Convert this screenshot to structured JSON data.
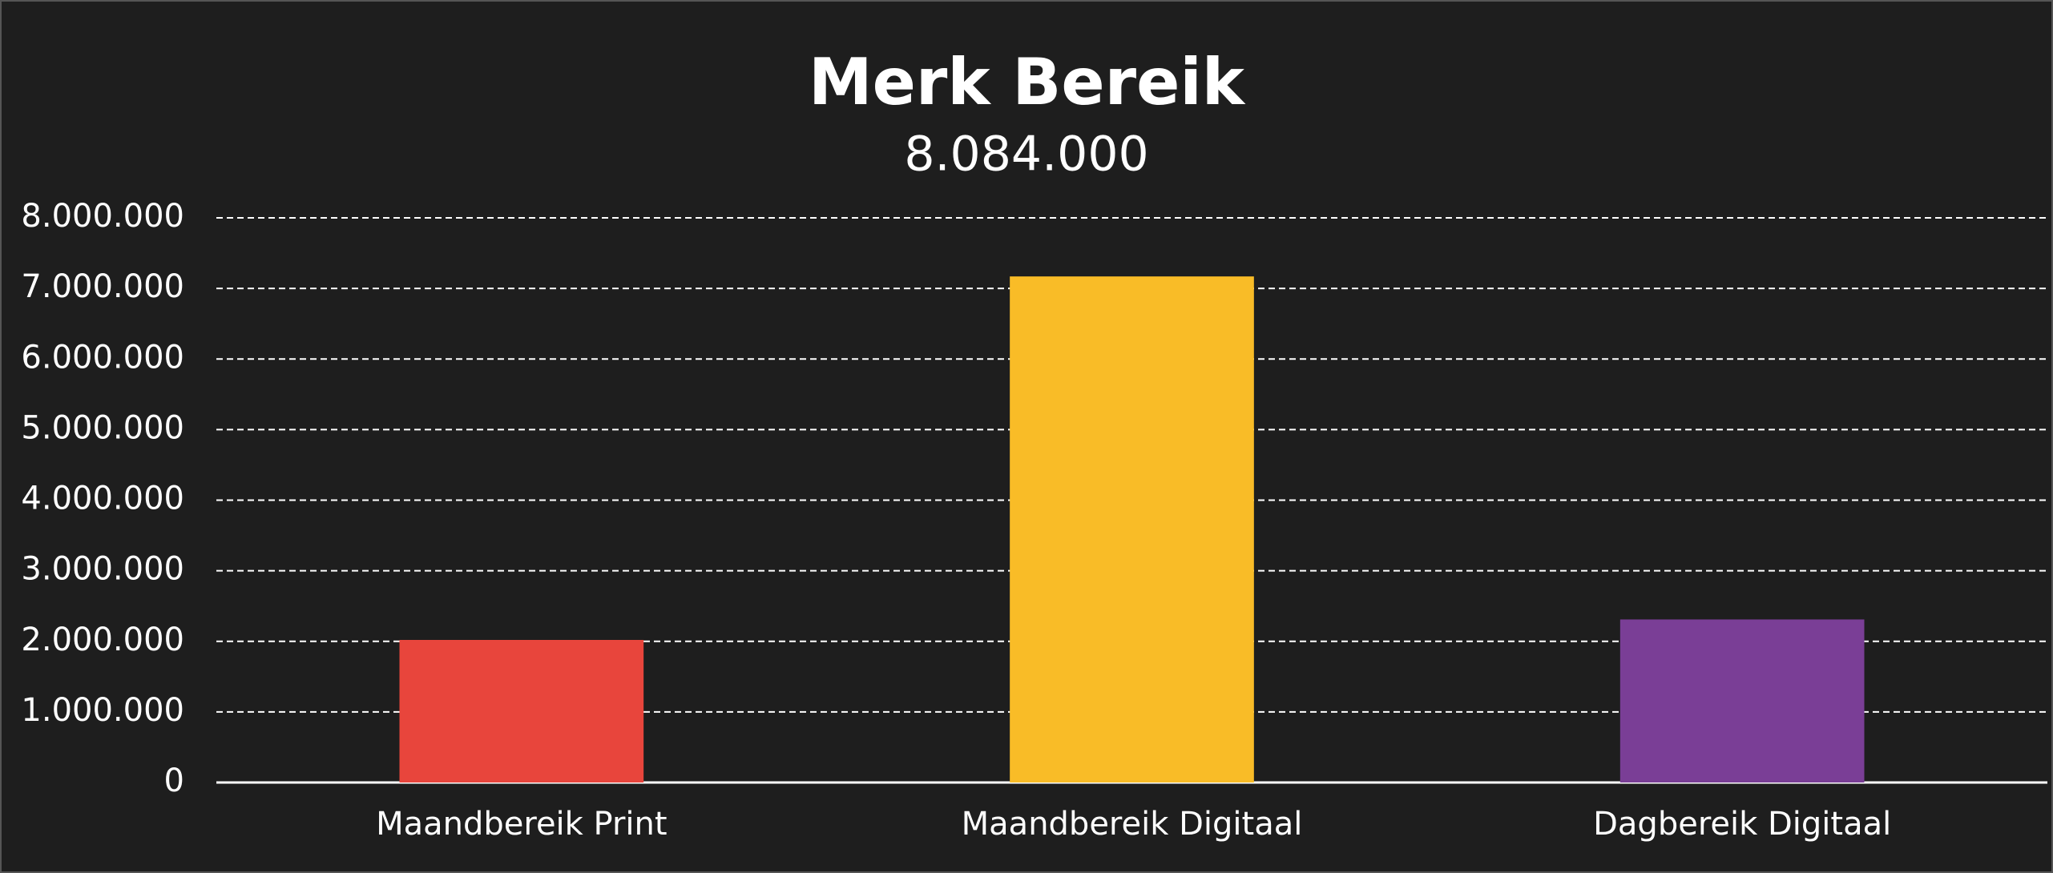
{
  "chart_data": {
    "type": "bar",
    "title": "Merk Bereik",
    "subtitle": "8.084.000",
    "categories": [
      "Maandbereik Print",
      "Maandbereik Digitaal",
      "Dagbereik Digitaal"
    ],
    "values": [
      2020000,
      7170000,
      2310000
    ],
    "colors": [
      "#e8453c",
      "#f9bc27",
      "#7a3e96"
    ],
    "ylim": [
      0,
      8000000
    ],
    "yticks": [
      0,
      {
        "value": 1000000,
        "label": "1.000.000"
      },
      {
        "value": 2000000,
        "label": "2.000.000"
      },
      {
        "value": 3000000,
        "label": "3.000.000"
      },
      {
        "value": 4000000,
        "label": "4.000.000"
      },
      {
        "value": 5000000,
        "label": "5.000.000"
      },
      {
        "value": 6000000,
        "label": "6.000.000"
      },
      {
        "value": 7000000,
        "label": "7.000.000"
      },
      {
        "value": 8000000,
        "label": "8.000.000"
      }
    ],
    "grid": true
  }
}
